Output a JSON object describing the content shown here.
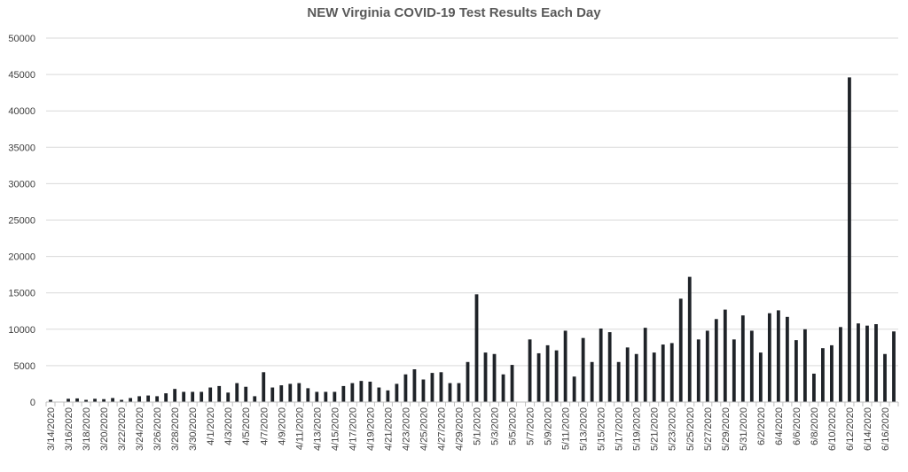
{
  "chart_data": {
    "type": "bar",
    "title": "NEW Virginia COVID-19 Test Results Each Day",
    "xlabel": "",
    "ylabel": "",
    "ylim": [
      0,
      50000
    ],
    "yticks": [
      0,
      5000,
      10000,
      15000,
      20000,
      25000,
      30000,
      35000,
      40000,
      45000,
      50000
    ],
    "grid": true,
    "legend": "none",
    "bar_color": "#1f2328",
    "grid_color": "#d9d9d9",
    "start_date": "3/14/2020",
    "x_tick_labels": [
      "3/14/2020",
      "3/16/2020",
      "3/18/2020",
      "3/20/2020",
      "3/22/2020",
      "3/24/2020",
      "3/26/2020",
      "3/28/2020",
      "3/30/2020",
      "4/1/2020",
      "4/3/2020",
      "4/5/2020",
      "4/7/2020",
      "4/9/2020",
      "4/11/2020",
      "4/13/2020",
      "4/15/2020",
      "4/17/2020",
      "4/19/2020",
      "4/21/2020",
      "4/23/2020",
      "4/25/2020",
      "4/27/2020",
      "4/29/2020",
      "5/1/2020",
      "5/3/2020",
      "5/5/2020",
      "5/7/2020",
      "5/9/2020",
      "5/11/2020",
      "5/13/2020",
      "5/15/2020",
      "5/17/2020",
      "5/19/2020",
      "5/21/2020",
      "5/23/2020",
      "5/25/2020",
      "5/27/2020",
      "5/29/2020",
      "5/31/2020",
      "6/2/2020",
      "6/4/2020",
      "6/6/2020",
      "6/8/2020",
      "6/10/2020",
      "6/12/2020",
      "6/14/2020",
      "6/16/2020"
    ],
    "values": [
      300,
      0,
      450,
      500,
      300,
      450,
      400,
      550,
      300,
      550,
      800,
      900,
      800,
      1200,
      1800,
      1400,
      1400,
      1400,
      2000,
      2200,
      1300,
      2600,
      2100,
      800,
      4100,
      2000,
      2300,
      2500,
      2600,
      1900,
      1400,
      1400,
      1400,
      2200,
      2600,
      2900,
      2800,
      2000,
      1600,
      2500,
      3800,
      4500,
      3100,
      4000,
      4100,
      2600,
      2600,
      5500,
      14800,
      6800,
      6600,
      3800,
      5100,
      0,
      8600,
      6700,
      7800,
      7100,
      9800,
      3500,
      8800,
      5500,
      10100,
      9600,
      5500,
      7500,
      6600,
      10200,
      6800,
      7900,
      8100,
      14200,
      17200,
      8600,
      9800,
      11400,
      12700,
      8600,
      11900,
      9800,
      6800,
      12200,
      12600,
      11700,
      8500,
      10000,
      3900,
      7400,
      7800,
      10300,
      44600,
      10800,
      10500,
      10700,
      6600,
      9700
    ]
  }
}
